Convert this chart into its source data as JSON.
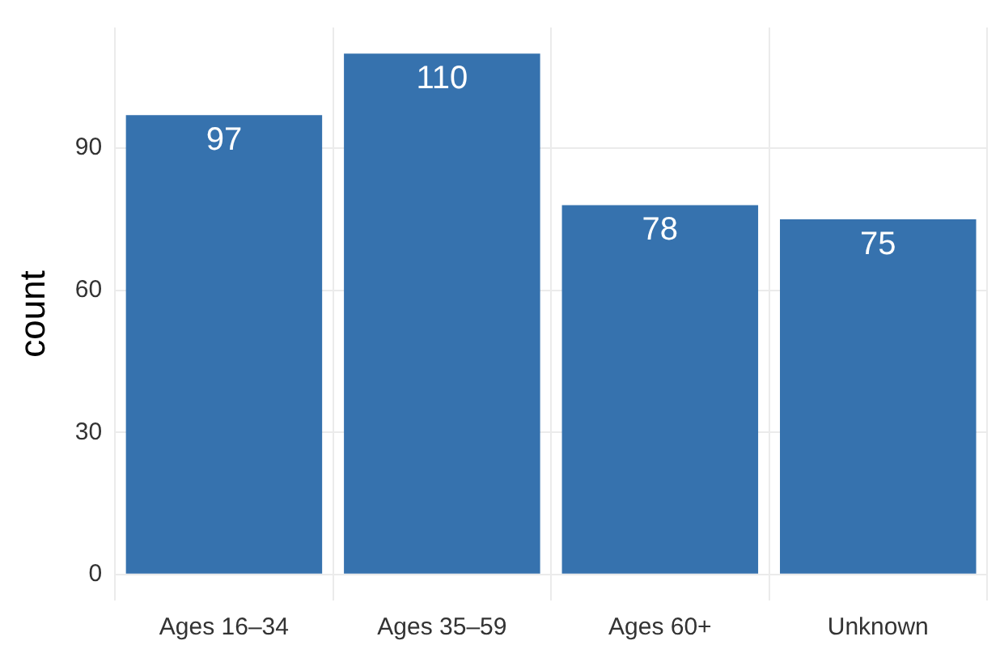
{
  "chart_data": {
    "type": "bar",
    "ylabel": "count",
    "categories": [
      "Ages 16–34",
      "Ages 35–59",
      "Ages 60+",
      "Unknown"
    ],
    "values": [
      97,
      110,
      78,
      75
    ],
    "color": "#3672ae",
    "ylim": [
      -5.5,
      115.5
    ],
    "yticks": [
      0,
      30,
      60,
      90
    ],
    "grid": true,
    "data_labels": true
  }
}
